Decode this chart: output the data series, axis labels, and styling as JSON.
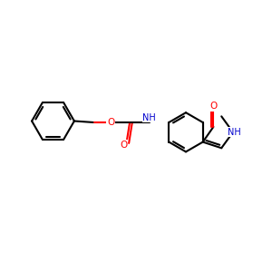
{
  "background_color": "#ffffff",
  "bond_color": "#000000",
  "oxygen_color": "#ff0000",
  "nitrogen_color": "#0000cd",
  "bond_width": 1.5,
  "figsize": [
    3.0,
    3.0
  ],
  "dpi": 100,
  "xlim": [
    0,
    10
  ],
  "ylim": [
    0,
    10
  ]
}
